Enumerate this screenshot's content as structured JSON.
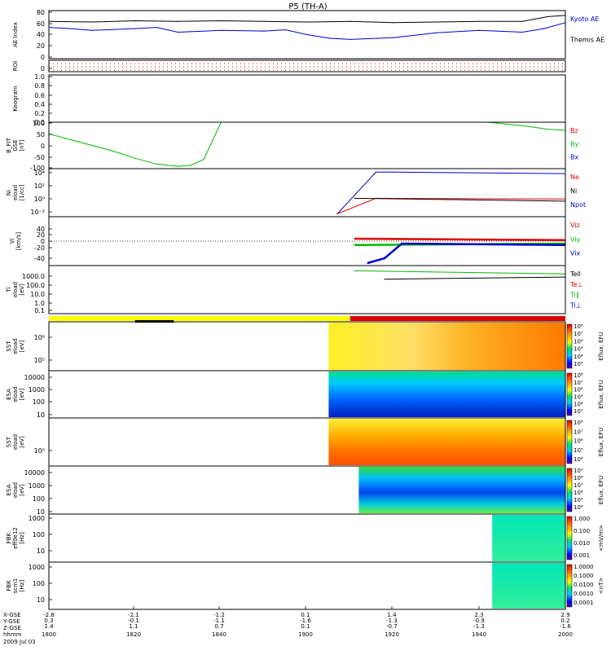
{
  "title": "P5 (TH-A)",
  "time_axis": {
    "ticks": [
      "1800",
      "1820",
      "1840",
      "1900",
      "1920",
      "1940",
      "2000"
    ],
    "row_labels": [
      "X-GSE",
      "Y-GSE",
      "Z-GSE",
      "hhmm"
    ],
    "rows": [
      [
        "-2.8",
        "-2.1",
        "-1.2",
        "0.1",
        "1.4",
        "2.3",
        "2.9"
      ],
      [
        "0.3",
        "-0.1",
        "-1.1",
        "-1.6",
        "-1.3",
        "-0.9",
        "0.2"
      ],
      [
        "1.4",
        "1.1",
        "0.7",
        "0.1",
        "-0.7",
        "-1.3",
        "-1.6"
      ]
    ],
    "date": "2009 Jul 03"
  },
  "colors": {
    "kyoto": "#0000cc",
    "themis": "#000000",
    "bz": "#dd0000",
    "by": "#00bb00",
    "bx": "#0000cc",
    "roi": "#dd0000",
    "bar_yellow": "#ffff00",
    "bar_red": "#dd0000",
    "bar_black": "#000000"
  },
  "panels": [
    {
      "id": "ae",
      "ylabel": [
        "AE Index"
      ],
      "unit": "",
      "ticks": [
        "80",
        "60",
        "40",
        "20",
        "0"
      ],
      "ylim": [
        0,
        80
      ],
      "legend": [
        {
          "label": "Kyoto AE",
          "color": "#0000cc"
        },
        {
          "label": "Themis AE",
          "color": "#000000"
        }
      ]
    },
    {
      "id": "roi",
      "ylabel": [
        "ROI"
      ],
      "unit": "",
      "ticks": [
        "0"
      ],
      "legend": []
    },
    {
      "id": "keogram",
      "ylabel": [
        "Keogram"
      ],
      "unit": "",
      "ticks": [
        "1.0",
        "0.8",
        "0.6",
        "0.4",
        "0.2",
        "0.0"
      ],
      "ylim": [
        0,
        1
      ],
      "legend": []
    },
    {
      "id": "bfit",
      "ylabel": [
        "B_FIT",
        "GSE"
      ],
      "unit": "[nT]",
      "ticks": [
        "100",
        "50",
        "0",
        "-50",
        "-100"
      ],
      "ylim": [
        -100,
        100
      ],
      "legend": [
        {
          "label": "Bz",
          "color": "#dd0000"
        },
        {
          "label": "By",
          "color": "#00bb00"
        },
        {
          "label": "Bx",
          "color": "#0000cc"
        }
      ]
    },
    {
      "id": "ni",
      "ylabel": [
        "Ni",
        "eload"
      ],
      "unit": "[1/cc]",
      "ticks": [
        "10⁴",
        "10²",
        "10⁰",
        "10⁻²"
      ],
      "legend": [
        {
          "label": "Ne",
          "color": "#dd0000"
        },
        {
          "label": "Ni",
          "color": "#000000"
        },
        {
          "label": "Npot",
          "color": "#0000cc"
        }
      ]
    },
    {
      "id": "vi",
      "ylabel": [
        "Vi"
      ],
      "unit": "[km/s]",
      "ticks": [
        "40",
        "20",
        "0",
        "-20",
        "-40"
      ],
      "ylim": [
        -50,
        50
      ],
      "legend": [
        {
          "label": "Viz",
          "color": "#dd0000"
        },
        {
          "label": "Viy",
          "color": "#00bb00"
        },
        {
          "label": "Vix",
          "color": "#0000cc"
        }
      ]
    },
    {
      "id": "ti",
      "ylabel": [
        "Ti",
        "eload"
      ],
      "unit": "[eV]",
      "ticks": [
        "1000.0",
        "100.0",
        "10.0",
        "1.0",
        "0.1"
      ],
      "legend": [
        {
          "label": "Tell",
          "color": "#000000"
        },
        {
          "label": "Te⊥",
          "color": "#dd0000"
        },
        {
          "label": "Ti∥",
          "color": "#00bb00"
        },
        {
          "label": "Ti⊥",
          "color": "#0000cc"
        }
      ]
    },
    {
      "id": "sst_i",
      "ylabel": [
        "SST",
        "eload"
      ],
      "unit": "[eV]",
      "ticks": [
        "10⁶",
        "10⁵"
      ],
      "cbar_label": "Eflux, EFU",
      "cbar_ticks": [
        "10⁸",
        "10⁷",
        "10⁶",
        "10⁵",
        "10⁴",
        "10³"
      ]
    },
    {
      "id": "esa_i",
      "ylabel": [
        "ESA",
        "eload"
      ],
      "unit": "[eV]",
      "ticks": [
        "10000",
        "1000",
        "100",
        "10"
      ],
      "cbar_label": "Eflux, EFU",
      "cbar_ticks": [
        "10⁸",
        "10⁷",
        "10⁶",
        "10⁵",
        "10⁴",
        "10³"
      ]
    },
    {
      "id": "sst_e",
      "ylabel": [
        "SST",
        "eload"
      ],
      "unit": "[eV]",
      "ticks": [
        "10⁵"
      ],
      "cbar_label": "Eflux, EFU",
      "cbar_ticks": [
        "10⁸",
        "10⁷",
        "10⁶",
        "10⁵",
        "10⁴"
      ]
    },
    {
      "id": "esa_e",
      "ylabel": [
        "ESA",
        "eload"
      ],
      "unit": "[eV]",
      "ticks": [
        "10000",
        "1000",
        "100",
        "10"
      ],
      "cbar_label": "Eflux, EFU",
      "cbar_ticks": [
        "10⁹",
        "10⁸",
        "10⁷",
        "10⁶",
        "10⁵",
        "10⁴"
      ]
    },
    {
      "id": "fbk_e",
      "ylabel": [
        "FBK",
        "eff0e12"
      ],
      "unit": "[Hz]",
      "ticks": [
        "1000",
        "100",
        "10"
      ],
      "cbar_label": "<mV/m>",
      "cbar_ticks": [
        "1.000",
        "0.100",
        "0.010",
        "0.001"
      ]
    },
    {
      "id": "fbk_b",
      "ylabel": [
        "FBK",
        "scm1"
      ],
      "unit": "[Hz]",
      "ticks": [
        "1000",
        "100",
        "10"
      ],
      "cbar_label": "<nT>",
      "cbar_ticks": [
        "1.0000",
        "0.1000",
        "0.0100",
        "0.0010",
        "0.0001"
      ]
    }
  ],
  "chart_data": [
    {
      "type": "line",
      "title": "AE Index",
      "ylim": [
        0,
        80
      ],
      "xlim": [
        0,
        120
      ],
      "series": [
        {
          "name": "Themis AE",
          "x": [
            0,
            10,
            20,
            30,
            40,
            50,
            60,
            70,
            80,
            90,
            100,
            110,
            116,
            120
          ],
          "values": [
            62,
            61,
            63,
            62,
            63,
            62,
            61,
            62,
            60,
            61,
            62,
            62,
            70,
            72
          ]
        },
        {
          "name": "Kyoto AE",
          "x": [
            0,
            5,
            10,
            20,
            25,
            30,
            40,
            50,
            55,
            60,
            65,
            70,
            80,
            90,
            100,
            110,
            115,
            120
          ],
          "values": [
            52,
            50,
            47,
            50,
            52,
            44,
            47,
            46,
            48,
            40,
            34,
            32,
            35,
            43,
            47,
            44,
            50,
            60
          ]
        }
      ]
    },
    {
      "type": "line",
      "title": "B_FIT GSE",
      "ylim": [
        -100,
        100
      ],
      "xlim": [
        0,
        120
      ],
      "series": [
        {
          "name": "By",
          "x": [
            0,
            5,
            10,
            15,
            20,
            25,
            30,
            33,
            36,
            40,
            102,
            110,
            116,
            120
          ],
          "values": [
            50,
            25,
            0,
            -25,
            -55,
            -80,
            -90,
            -85,
            -60,
            100,
            100,
            85,
            70,
            65
          ]
        }
      ]
    },
    {
      "type": "line",
      "title": "Ni",
      "xlim": [
        0,
        120
      ],
      "series": [
        {
          "name": "Npot",
          "x": [
            67,
            76,
            80,
            120
          ],
          "log_values": [
            -2,
            3.9,
            3.9,
            3.7
          ]
        },
        {
          "name": "Ne",
          "x": [
            67,
            76,
            120
          ],
          "log_values": [
            -2,
            0.2,
            0.1
          ]
        },
        {
          "name": "Ni",
          "x": [
            71,
            120
          ],
          "log_values": [
            0.2,
            -0.2
          ]
        }
      ]
    },
    {
      "type": "line",
      "title": "Vi",
      "ylim": [
        -50,
        50
      ],
      "xlim": [
        0,
        120
      ],
      "series": [
        {
          "name": "Viz",
          "x": [
            71,
            120
          ],
          "values": [
            5,
            2
          ]
        },
        {
          "name": "Viy",
          "x": [
            71,
            120
          ],
          "values": [
            -8,
            -5
          ]
        },
        {
          "name": "Vix",
          "x": [
            74,
            78,
            82,
            120
          ],
          "values": [
            -45,
            -35,
            -5,
            -8
          ]
        }
      ]
    },
    {
      "type": "line",
      "title": "Ti",
      "xlim": [
        0,
        120
      ],
      "series": [
        {
          "name": "Ti∥",
          "x": [
            71,
            120
          ],
          "log_values": [
            2.9,
            2.6
          ]
        },
        {
          "name": "Tell",
          "x": [
            78,
            120
          ],
          "log_values": [
            2.1,
            2.3
          ]
        }
      ]
    },
    {
      "type": "heatmap",
      "title": "SST",
      "x_start": 65
    },
    {
      "type": "heatmap",
      "title": "ESA",
      "x_start": 65
    },
    {
      "type": "heatmap",
      "title": "SST",
      "x_start": 65
    },
    {
      "type": "heatmap",
      "title": "ESA",
      "x_start": 72
    },
    {
      "type": "heatmap",
      "title": "FBK eff0e12",
      "x_start": 103
    },
    {
      "type": "heatmap",
      "title": "FBK scm1",
      "x_start": 103
    }
  ]
}
